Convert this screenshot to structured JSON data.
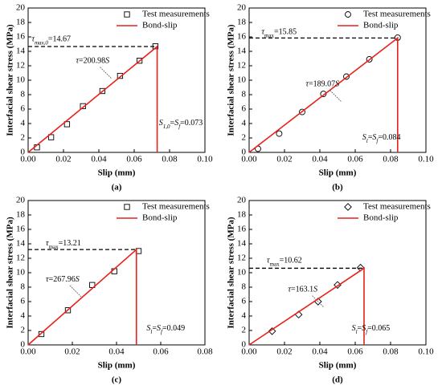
{
  "chart_data": [
    {
      "type": "scatter-line",
      "panel_label": "(a)",
      "x_label": "Slip (mm)",
      "y_label": "Interfacial  shear stress (MPa)",
      "xlim": [
        0,
        0.1
      ],
      "ylim": [
        0,
        20
      ],
      "xticks": [
        {
          "value": 0,
          "label": "0.00"
        },
        {
          "value": 0.02,
          "label": "0.02"
        },
        {
          "value": 0.04,
          "label": "0.04"
        },
        {
          "value": 0.06,
          "label": "0.06"
        },
        {
          "value": 0.08,
          "label": "0.08"
        },
        {
          "value": 0.1,
          "label": "0.10"
        }
      ],
      "yticks": [
        0,
        2,
        4,
        6,
        8,
        10,
        12,
        14,
        16,
        18,
        20
      ],
      "series": [
        {
          "name": "Test measurements",
          "kind": "points",
          "marker": "square",
          "color": "#000000",
          "x": [
            0.005,
            0.013,
            0.022,
            0.031,
            0.042,
            0.052,
            0.063,
            0.072
          ],
          "values": [
            0.7,
            2.1,
            3.9,
            6.4,
            8.5,
            10.6,
            12.7,
            14.7
          ]
        },
        {
          "name": "Bond-slip",
          "kind": "line",
          "color": "#e8211c",
          "x": [
            0,
            0.073,
            0.073
          ],
          "values": [
            0,
            14.67,
            0
          ]
        }
      ],
      "annotations": [
        [
          {
            "text": "τ",
            "italic": true
          },
          {
            "text": "max,0",
            "sub": true,
            "italic": true
          },
          {
            "text": "=14.67"
          }
        ],
        [
          {
            "text": "τ",
            "italic": true
          },
          {
            "text": "=200.98"
          },
          {
            "text": "S",
            "italic": true
          }
        ],
        [
          {
            "text": "S",
            "italic": true
          },
          {
            "text": "1,0",
            "sub": true,
            "italic": true
          },
          {
            "text": "="
          },
          {
            "text": "S",
            "italic": true
          },
          {
            "text": "f",
            "sub": true,
            "italic": true
          },
          {
            "text": "=0.073"
          }
        ]
      ]
    },
    {
      "type": "scatter-line",
      "panel_label": "(b)",
      "x_label": "Slip (mm)",
      "y_label": "Interfacial shear stress (MPa)",
      "xlim": [
        0,
        0.1
      ],
      "ylim": [
        0,
        20
      ],
      "xticks": [
        {
          "value": 0,
          "label": "0.00"
        },
        {
          "value": 0.02,
          "label": "0.02"
        },
        {
          "value": 0.04,
          "label": "0.04"
        },
        {
          "value": 0.06,
          "label": "0.06"
        },
        {
          "value": 0.08,
          "label": "0.08"
        },
        {
          "value": 0.1,
          "label": "0.10"
        }
      ],
      "yticks": [
        0,
        2,
        4,
        6,
        8,
        10,
        12,
        14,
        16,
        18,
        20
      ],
      "series": [
        {
          "name": "Test measurements",
          "kind": "points",
          "marker": "circle",
          "color": "#000000",
          "x": [
            0.005,
            0.017,
            0.03,
            0.042,
            0.055,
            0.068,
            0.084
          ],
          "values": [
            0.5,
            2.6,
            5.6,
            8.1,
            10.5,
            12.9,
            15.9
          ]
        },
        {
          "name": "Bond-slip",
          "kind": "line",
          "color": "#e8211c",
          "x": [
            0,
            0.084,
            0.084
          ],
          "values": [
            0,
            15.85,
            0
          ]
        }
      ],
      "annotations": [
        [
          {
            "text": "τ",
            "italic": true
          },
          {
            "text": "max",
            "sub": true
          },
          {
            "text": "=15.85"
          }
        ],
        [
          {
            "text": "τ",
            "italic": true
          },
          {
            "text": "=189.07"
          },
          {
            "text": "S",
            "italic": true
          }
        ],
        [
          {
            "text": "S",
            "italic": true
          },
          {
            "text": "l",
            "sub": true,
            "italic": true
          },
          {
            "text": "="
          },
          {
            "text": "S",
            "italic": true
          },
          {
            "text": "f",
            "sub": true,
            "italic": true
          },
          {
            "text": "=0.084"
          }
        ]
      ]
    },
    {
      "type": "scatter-line",
      "panel_label": "(c)",
      "x_label": "Slip (mm)",
      "y_label": "Interfacial shear stress (MPa)",
      "xlim": [
        0,
        0.08
      ],
      "ylim": [
        0,
        20
      ],
      "xticks": [
        {
          "value": 0,
          "label": "0.00"
        },
        {
          "value": 0.02,
          "label": "0.02"
        },
        {
          "value": 0.04,
          "label": "0.04"
        },
        {
          "value": 0.06,
          "label": "0.06"
        },
        {
          "value": 0.08,
          "label": "0.08"
        }
      ],
      "yticks": [
        0,
        2,
        4,
        6,
        8,
        10,
        12,
        14,
        16,
        18,
        20
      ],
      "series": [
        {
          "name": "Test measurements",
          "kind": "points",
          "marker": "square",
          "color": "#000000",
          "x": [
            0.006,
            0.018,
            0.029,
            0.039,
            0.05
          ],
          "values": [
            1.5,
            4.8,
            8.3,
            10.2,
            13.0
          ]
        },
        {
          "name": "Bond-slip",
          "kind": "line",
          "color": "#e8211c",
          "x": [
            0,
            0.049,
            0.049
          ],
          "values": [
            0,
            13.21,
            0
          ]
        }
      ],
      "annotations": [
        [
          {
            "text": "τ",
            "italic": true
          },
          {
            "text": "max",
            "sub": true
          },
          {
            "text": "=13.21"
          }
        ],
        [
          {
            "text": "τ",
            "italic": true
          },
          {
            "text": "=267.96"
          },
          {
            "text": "S",
            "italic": true
          }
        ],
        [
          {
            "text": "S",
            "italic": true
          },
          {
            "text": "l",
            "sub": true,
            "italic": true
          },
          {
            "text": "="
          },
          {
            "text": "S",
            "italic": true
          },
          {
            "text": "f",
            "sub": true,
            "italic": true
          },
          {
            "text": "=0.049"
          }
        ]
      ]
    },
    {
      "type": "scatter-line",
      "panel_label": "(d)",
      "x_label": "Slip (mm)",
      "y_label": "Interfacial shear stress (MPa)",
      "xlim": [
        0,
        0.1
      ],
      "ylim": [
        0,
        20
      ],
      "xticks": [
        {
          "value": 0,
          "label": "0.00"
        },
        {
          "value": 0.02,
          "label": "0.02"
        },
        {
          "value": 0.04,
          "label": "0.04"
        },
        {
          "value": 0.06,
          "label": "0.06"
        },
        {
          "value": 0.08,
          "label": "0.08"
        },
        {
          "value": 0.1,
          "label": "0.10"
        }
      ],
      "yticks": [
        0,
        2,
        4,
        6,
        8,
        10,
        12,
        14,
        16,
        18,
        20
      ],
      "series": [
        {
          "name": "Test measurements",
          "kind": "points",
          "marker": "diamond",
          "color": "#000000",
          "x": [
            0.013,
            0.028,
            0.039,
            0.05,
            0.063
          ],
          "values": [
            1.9,
            4.2,
            6.0,
            8.3,
            10.7
          ]
        },
        {
          "name": "Bond-slip",
          "kind": "line",
          "color": "#e8211c",
          "x": [
            0,
            0.065,
            0.065
          ],
          "values": [
            0,
            10.62,
            0
          ]
        }
      ],
      "annotations": [
        [
          {
            "text": "τ",
            "italic": true
          },
          {
            "text": "max",
            "sub": true
          },
          {
            "text": "=10.62"
          }
        ],
        [
          {
            "text": "τ",
            "italic": true
          },
          {
            "text": "=163.1"
          },
          {
            "text": "S",
            "italic": true
          }
        ],
        [
          {
            "text": "S",
            "italic": true
          },
          {
            "text": "l",
            "sub": true,
            "italic": true
          },
          {
            "text": "="
          },
          {
            "text": "S",
            "italic": true
          },
          {
            "text": "f",
            "sub": true,
            "italic": true
          },
          {
            "text": "=0.065"
          }
        ]
      ]
    }
  ]
}
